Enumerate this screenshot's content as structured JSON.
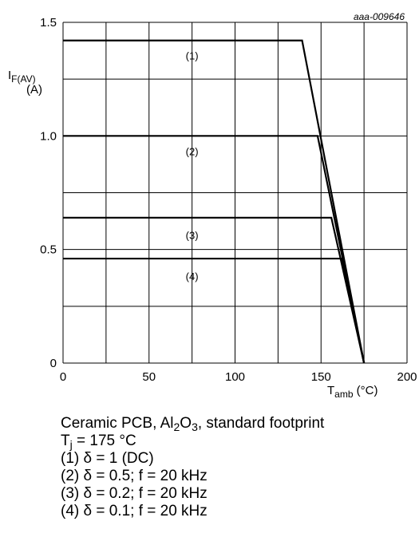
{
  "chart_data": {
    "type": "line",
    "reference": "aaa-009646",
    "xlabel": {
      "main": "T",
      "sub": "amb",
      "unit": " (°C)"
    },
    "ylabel": {
      "main": "I",
      "sub": "F(AV)",
      "unit": "(A)"
    },
    "xlim": [
      0,
      200
    ],
    "ylim": [
      0,
      1.5
    ],
    "grid": true,
    "x_ticks": [
      {
        "value": 0,
        "label": "0"
      },
      {
        "value": 50,
        "label": "50"
      },
      {
        "value": 100,
        "label": "100"
      },
      {
        "value": 150,
        "label": "150"
      },
      {
        "value": 200,
        "label": "200"
      }
    ],
    "y_ticks": [
      {
        "value": 0,
        "label": "0"
      },
      {
        "value": 0.5,
        "label": "0.5"
      },
      {
        "value": 1.0,
        "label": "1.0"
      },
      {
        "value": 1.5,
        "label": "1.5"
      }
    ],
    "x_gridlines": [
      0,
      25,
      50,
      75,
      100,
      125,
      150,
      175,
      200
    ],
    "y_gridlines": [
      0,
      0.25,
      0.5,
      0.75,
      1.0,
      1.25,
      1.5
    ],
    "series": [
      {
        "name": "(1)",
        "x": [
          0,
          139,
          175
        ],
        "y": [
          1.42,
          1.42,
          0
        ],
        "label_at": [
          75,
          1.35
        ]
      },
      {
        "name": "(2)",
        "x": [
          0,
          148,
          175
        ],
        "y": [
          1.0,
          1.0,
          0
        ],
        "label_at": [
          75,
          0.93
        ]
      },
      {
        "name": "(3)",
        "x": [
          0,
          156,
          175
        ],
        "y": [
          0.64,
          0.64,
          0
        ],
        "label_at": [
          75,
          0.56
        ]
      },
      {
        "name": "(4)",
        "x": [
          0,
          162,
          175
        ],
        "y": [
          0.46,
          0.46,
          0
        ],
        "label_at": [
          75,
          0.38
        ]
      }
    ]
  },
  "notes": {
    "line1": {
      "pre": "Ceramic PCB, Al",
      "sub1": "2",
      "mid": "O",
      "sub2": "3",
      "post": ", standard footprint"
    },
    "line2": {
      "pre": "T",
      "sub": "j",
      "post": " = 175 °C"
    },
    "line3": "(1) δ = 1 (DC)",
    "line4": "(2) δ = 0.5; f = 20 kHz",
    "line5": "(3) δ = 0.2; f = 20 kHz",
    "line6": "(4) δ = 0.1; f = 20 kHz"
  }
}
